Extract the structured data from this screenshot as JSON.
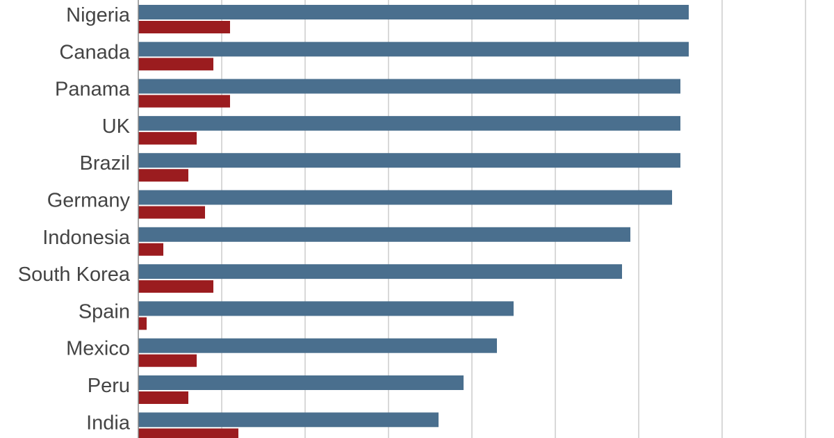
{
  "chart_data": {
    "type": "bar",
    "orientation": "horizontal",
    "title": "",
    "xlabel": "",
    "ylabel": "",
    "grid": true,
    "legend": "none",
    "xlim": [
      0,
      80
    ],
    "gridline_step": 10,
    "colors": {
      "series_1": "#4A6F8E",
      "series_2": "#9B1C1F",
      "grid": "#BDBDBD",
      "axis": "#888888",
      "label": "#444444"
    },
    "categories": [
      "Nigeria",
      "Canada",
      "Panama",
      "UK",
      "Brazil",
      "Germany",
      "Indonesia",
      "South Korea",
      "Spain",
      "Mexico",
      "Peru",
      "India"
    ],
    "series": [
      {
        "values": [
          66,
          66,
          65,
          65,
          65,
          64,
          59,
          58,
          45,
          43,
          39,
          36
        ]
      },
      {
        "values": [
          11,
          9,
          11,
          7,
          6,
          8,
          3,
          9,
          1,
          7,
          6,
          12
        ]
      }
    ]
  }
}
